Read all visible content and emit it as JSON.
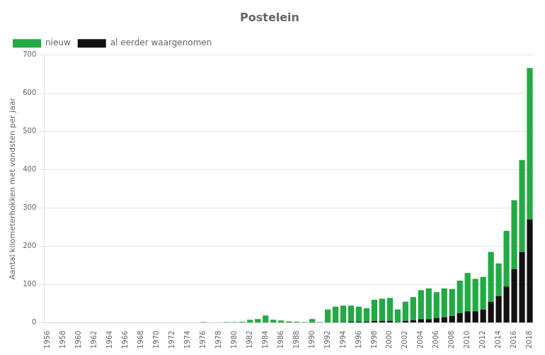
{
  "chart_data": {
    "type": "bar",
    "title": "Postelein",
    "ylabel": "Aantal kilometerhokken met vondsten per jaar",
    "categories": [
      "1956",
      null,
      "1958",
      null,
      "1960",
      null,
      "1962",
      null,
      "1964",
      null,
      "1966",
      null,
      "1968",
      null,
      "1970",
      null,
      "1972",
      null,
      "1974",
      null,
      "1976",
      null,
      "1978",
      null,
      "1980",
      null,
      "1982",
      null,
      "1984",
      null,
      "1986",
      null,
      "1988",
      null,
      "1990",
      null,
      "1992",
      null,
      "1994",
      null,
      "1996",
      null,
      "1998",
      null,
      "2000",
      null,
      "2002",
      null,
      "2004",
      null,
      "2006",
      null,
      "2008",
      null,
      "2010",
      null,
      "2012",
      null,
      "2014",
      null,
      "2016",
      null,
      "2018"
    ],
    "series": [
      {
        "name": "al eerder waargenomen",
        "color": "#111111",
        "values": [
          0,
          0,
          0,
          0,
          0,
          0,
          0,
          0,
          0,
          0,
          0,
          0,
          0,
          0,
          0,
          0,
          0,
          0,
          0,
          0,
          0,
          0,
          0,
          0,
          0,
          0,
          0,
          0,
          0,
          0,
          0,
          0,
          0,
          0,
          0,
          0,
          0,
          2,
          2,
          3,
          3,
          3,
          5,
          5,
          5,
          2,
          5,
          7,
          10,
          10,
          12,
          15,
          18,
          25,
          30,
          30,
          35,
          55,
          70,
          95,
          140,
          185,
          270
        ]
      },
      {
        "name": "nieuw",
        "color": "#22aa44",
        "values": [
          0,
          0,
          0,
          0,
          0,
          0,
          0,
          0,
          0,
          0,
          1,
          0,
          0,
          0,
          0,
          0,
          0,
          0,
          0,
          0,
          2,
          1,
          1,
          2,
          2,
          3,
          8,
          10,
          19,
          8,
          6,
          4,
          3,
          2,
          10,
          2,
          35,
          40,
          43,
          42,
          39,
          35,
          55,
          58,
          60,
          33,
          50,
          60,
          75,
          80,
          68,
          75,
          70,
          85,
          100,
          85,
          85,
          130,
          85,
          145,
          180,
          240,
          395
        ]
      }
    ],
    "stacked": true,
    "ylim": [
      0,
      700
    ],
    "yticks": [
      0,
      100,
      200,
      300,
      400,
      500,
      600,
      700
    ],
    "grid": true,
    "legend": "upper left"
  }
}
